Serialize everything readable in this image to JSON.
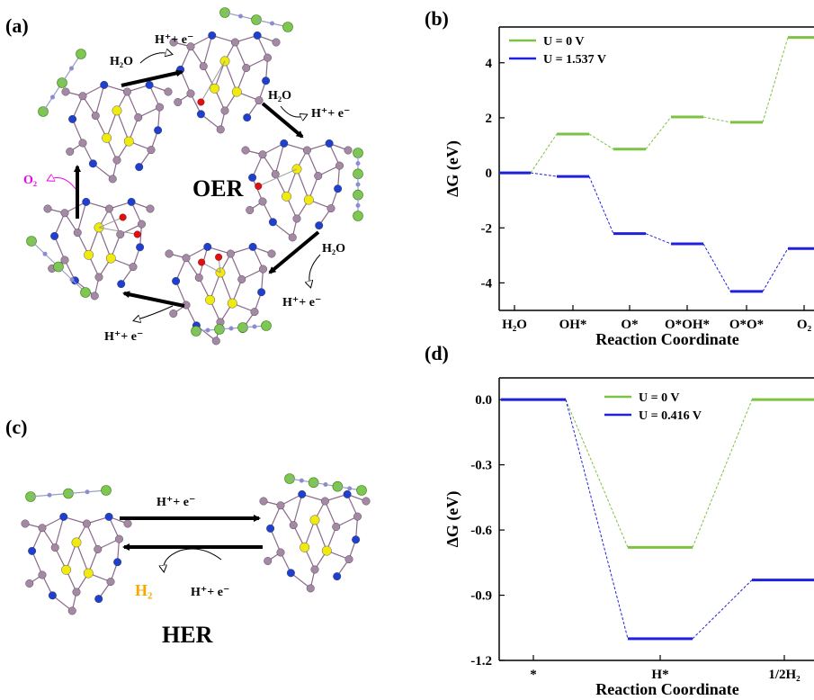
{
  "panels": {
    "a": "(a)",
    "b": "(b)",
    "c": "(c)",
    "d": "(d)"
  },
  "schemes": {
    "oer": {
      "title": "OER",
      "steps": [
        {
          "reactant": "H₂O",
          "product": "H⁺+ e⁻"
        },
        {
          "reactant": "H₂O",
          "product": "H⁺+ e⁻"
        },
        {
          "reactant": "H₂O",
          "product": "H⁺+ e⁻"
        },
        {
          "reactant": "",
          "product": "H⁺+ e⁻"
        },
        {
          "reactant": "",
          "product": "O₂"
        }
      ]
    },
    "her": {
      "title": "HER",
      "forward": "H⁺+ e⁻",
      "back_in": "H⁺+ e⁻",
      "back_out": "H₂"
    }
  },
  "colors": {
    "green": "#7dc242",
    "blue": "#2020e0",
    "o2": "#ee00ee",
    "h2": "#f5a800",
    "atom_c": "#a588a5",
    "atom_n": "#1f3fd0",
    "atom_s": "#f0ea10",
    "atom_o": "#e01010",
    "atom_cl": "#7ec850"
  },
  "chart_data": [
    {
      "type": "line",
      "panel": "(b)",
      "categories": [
        "H₂O",
        "OH*",
        "O*",
        "O*OH*",
        "O*O*",
        "O₂"
      ],
      "xlabel": "Reaction Coordinate",
      "ylabel": "ΔG (eV)",
      "ylim": [
        -5,
        5.3
      ],
      "yticks": [
        -4,
        -2,
        0,
        2,
        4
      ],
      "series": [
        {
          "name": "U = 0 V",
          "values": [
            0,
            1.41,
            0.86,
            2.03,
            1.84,
            4.92
          ]
        },
        {
          "name": "U = 1.537 V",
          "values": [
            0,
            -0.13,
            -2.21,
            -2.58,
            -4.31,
            -2.75
          ]
        }
      ],
      "legend": "top-left"
    },
    {
      "type": "line",
      "panel": "(d)",
      "categories": [
        "*",
        "H*",
        "1/2H₂"
      ],
      "xlabel": "Reaction Coordinate",
      "ylabel": "ΔG (eV)",
      "ylim": [
        -1.2,
        0.1
      ],
      "yticks": [
        0.0,
        -0.3,
        -0.6,
        -0.9,
        -1.2
      ],
      "yticklabels": [
        "0.0",
        "-0.3",
        "-0.6",
        "-0.9",
        "-1.2"
      ],
      "series": [
        {
          "name": "U = 0 V",
          "values": [
            0,
            -0.68,
            0
          ]
        },
        {
          "name": "U = 0.416 V",
          "values": [
            0,
            -1.1,
            -0.83
          ]
        }
      ],
      "legend": "top-center"
    }
  ]
}
